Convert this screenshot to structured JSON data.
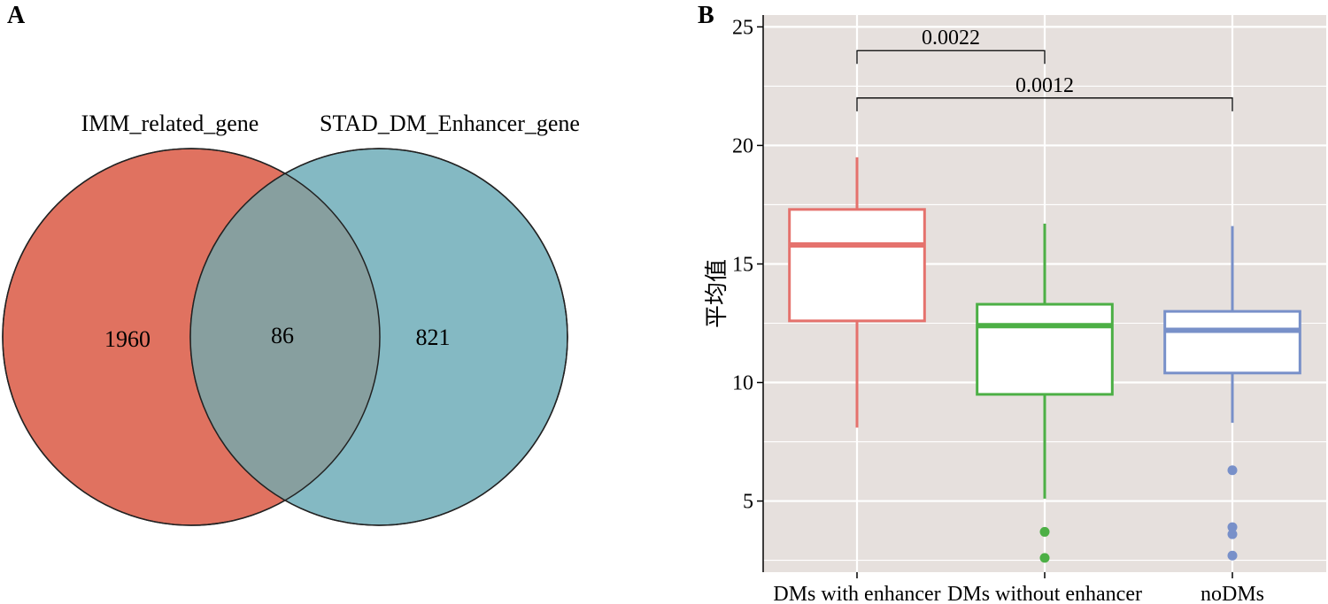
{
  "panels": {
    "a_letter": "A",
    "b_letter": "B"
  },
  "venn": {
    "sets": [
      {
        "name": "IMM_related_gene",
        "only_count": "1960",
        "color": "#e07260"
      },
      {
        "name": "STAD_DM_Enhancer_gene",
        "only_count": "821",
        "color": "#84b9c3"
      }
    ],
    "overlap_count": "86",
    "overlap_color": "#879f9f"
  },
  "chart_data": {
    "type": "box",
    "title": "",
    "xlabel": "",
    "ylabel": "平均值",
    "ylim": [
      2,
      25.5
    ],
    "yticks": [
      5,
      10,
      15,
      20,
      25
    ],
    "background": "#e6e0dd",
    "grid": true,
    "categories": [
      "DMs with enhancer",
      "DMs without enhancer",
      "noDMs"
    ],
    "series": [
      {
        "category": "DMs with enhancer",
        "color": "#e5726d",
        "whisker_low": 8.1,
        "q1": 12.6,
        "median": 15.8,
        "q3": 17.3,
        "whisker_high": 19.5,
        "outliers": []
      },
      {
        "category": "DMs without enhancer",
        "color": "#4caf45",
        "whisker_low": 5.1,
        "q1": 9.5,
        "median": 12.4,
        "q3": 13.3,
        "whisker_high": 16.7,
        "outliers": [
          3.7,
          2.6
        ]
      },
      {
        "category": "noDMs",
        "color": "#7890c9",
        "whisker_low": 8.3,
        "q1": 10.4,
        "median": 12.2,
        "q3": 13.0,
        "whisker_high": 16.6,
        "outliers": [
          6.3,
          3.9,
          3.6,
          2.7
        ]
      }
    ],
    "comparisons": [
      {
        "from": 0,
        "to": 1,
        "label": "0.0022",
        "y": 24.0
      },
      {
        "from": 0,
        "to": 2,
        "label": "0.0012",
        "y": 22.0
      }
    ]
  }
}
